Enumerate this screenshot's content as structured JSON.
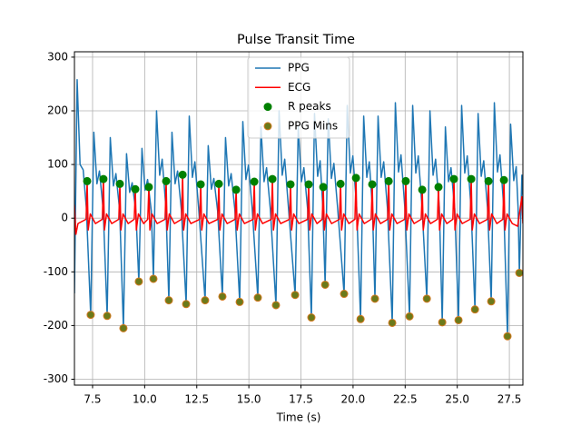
{
  "chart_data": {
    "type": "line",
    "title": "Pulse Transit Time",
    "x_label": "Time (s)",
    "xlim": [
      6.63,
      28.15
    ],
    "ylim": [
      -311,
      310
    ],
    "xticks": [
      7.5,
      {
        "value": 10,
        "label": "10.0"
      },
      12.5,
      {
        "value": 15,
        "label": "15.0"
      },
      17.5,
      {
        "value": 20,
        "label": "20.0"
      },
      22.5,
      {
        "value": 25,
        "label": "25.0"
      },
      27.5
    ],
    "yticks": [
      -300,
      -200,
      -100,
      0,
      100,
      200,
      300
    ],
    "grid": true,
    "legend_position": "upper center",
    "series": [
      {
        "name": "PPG",
        "kind": "line",
        "color": "#1f77b4",
        "x": [
          6.63,
          6.76,
          6.9,
          7.05,
          7.2,
          7.41,
          7.56,
          7.71,
          7.83,
          8.01,
          8.2,
          8.35,
          8.5,
          8.62,
          8.8,
          8.98,
          9.13,
          9.28,
          9.4,
          9.58,
          9.72,
          9.87,
          10.02,
          10.14,
          10.32,
          10.42,
          10.57,
          10.72,
          10.84,
          11.02,
          11.16,
          11.31,
          11.46,
          11.58,
          11.76,
          11.99,
          12.14,
          12.29,
          12.41,
          12.59,
          12.9,
          13.05,
          13.2,
          13.32,
          13.5,
          13.73,
          13.88,
          14.03,
          14.15,
          14.33,
          14.56,
          14.71,
          14.86,
          14.98,
          15.16,
          15.43,
          15.58,
          15.73,
          15.85,
          16.03,
          16.3,
          16.45,
          16.6,
          16.72,
          16.9,
          17.22,
          17.37,
          17.52,
          17.64,
          17.82,
          18.0,
          18.15,
          18.3,
          18.42,
          18.55,
          18.66,
          18.81,
          18.96,
          19.08,
          19.26,
          19.57,
          19.72,
          19.87,
          19.99,
          20.17,
          20.36,
          20.51,
          20.66,
          20.78,
          20.93,
          21.05,
          21.2,
          21.35,
          21.47,
          21.65,
          21.88,
          22.03,
          22.18,
          22.3,
          22.48,
          22.71,
          22.86,
          23.01,
          23.13,
          23.31,
          23.54,
          23.69,
          23.84,
          23.96,
          24.14,
          24.28,
          24.43,
          24.58,
          24.7,
          24.88,
          25.06,
          25.21,
          25.36,
          25.48,
          25.66,
          25.85,
          26.0,
          26.15,
          26.27,
          26.45,
          26.63,
          26.78,
          26.93,
          27.05,
          27.23,
          27.41,
          27.56,
          27.71,
          27.83,
          27.92,
          27.98,
          28.1,
          28.15
        ],
        "values": [
          -140,
          258,
          100,
          90,
          20,
          -180,
          160,
          64,
          88,
          16,
          -182,
          150,
          60,
          83,
          15,
          -205,
          120,
          48,
          66,
          12,
          -118,
          130,
          52,
          72,
          13,
          -113,
          200,
          80,
          110,
          20,
          -153,
          160,
          64,
          88,
          16,
          -160,
          190,
          76,
          105,
          19,
          -153,
          135,
          54,
          74,
          14,
          -146,
          150,
          60,
          83,
          15,
          -156,
          180,
          72,
          99,
          18,
          -148,
          170,
          68,
          94,
          17,
          -162,
          200,
          80,
          110,
          20,
          -143,
          170,
          68,
          94,
          17,
          -185,
          195,
          78,
          107,
          20,
          -124,
          185,
          74,
          102,
          19,
          -141,
          210,
          84,
          116,
          21,
          -188,
          190,
          76,
          105,
          19,
          -150,
          190,
          76,
          105,
          19,
          -195,
          215,
          86,
          118,
          22,
          -183,
          210,
          84,
          116,
          21,
          -150,
          200,
          80,
          110,
          20,
          -194,
          170,
          68,
          94,
          17,
          -190,
          210,
          84,
          116,
          21,
          -170,
          195,
          78,
          107,
          20,
          -155,
          215,
          86,
          118,
          22,
          -220,
          175,
          70,
          96,
          18,
          -102,
          80,
          40
        ]
      },
      {
        "name": "ECG",
        "kind": "line",
        "color": "#ff0000",
        "x": [
          6.63,
          6.7,
          6.8,
          7.19,
          7.24,
          7.29,
          7.39,
          7.64,
          7.97,
          8.02,
          8.07,
          8.17,
          8.42,
          8.76,
          8.81,
          8.86,
          8.96,
          9.21,
          9.5,
          9.55,
          9.6,
          9.7,
          9.95,
          10.15,
          10.2,
          10.25,
          10.35,
          10.6,
          10.98,
          11.03,
          11.08,
          11.18,
          11.43,
          11.77,
          11.82,
          11.87,
          11.97,
          12.22,
          12.64,
          12.69,
          12.74,
          12.84,
          13.09,
          13.51,
          13.56,
          13.61,
          13.71,
          13.96,
          14.34,
          14.39,
          14.44,
          14.54,
          14.79,
          15.21,
          15.26,
          15.31,
          15.41,
          15.66,
          16.08,
          16.13,
          16.18,
          16.28,
          16.53,
          16.95,
          17.0,
          17.05,
          17.15,
          17.4,
          17.82,
          17.87,
          17.92,
          18.02,
          18.27,
          18.52,
          18.57,
          18.62,
          18.72,
          18.97,
          19.35,
          19.4,
          19.45,
          19.55,
          19.8,
          20.09,
          20.14,
          20.19,
          20.29,
          20.54,
          20.87,
          20.92,
          20.97,
          21.07,
          21.32,
          21.66,
          21.71,
          21.76,
          21.86,
          22.11,
          22.48,
          22.53,
          22.58,
          22.68,
          22.93,
          23.27,
          23.32,
          23.37,
          23.47,
          23.72,
          24.05,
          24.1,
          24.15,
          24.25,
          24.5,
          24.79,
          24.84,
          24.89,
          24.99,
          25.24,
          25.62,
          25.67,
          25.72,
          25.82,
          26.07,
          26.45,
          26.5,
          26.55,
          26.65,
          26.9,
          27.19,
          27.24,
          27.29,
          27.39,
          27.64,
          27.9,
          28.1,
          28.15
        ],
        "values": [
          25,
          -30,
          -10,
          -2,
          69,
          -22,
          8,
          -10,
          -2,
          73,
          -22,
          8,
          -10,
          -2,
          64,
          -22,
          8,
          -10,
          -2,
          54,
          -22,
          8,
          -10,
          -2,
          58,
          -22,
          8,
          -10,
          -2,
          69,
          -22,
          8,
          -10,
          -2,
          81,
          -22,
          8,
          -10,
          -2,
          63,
          -22,
          8,
          -10,
          -2,
          64,
          -22,
          8,
          -10,
          -2,
          53,
          -22,
          8,
          -10,
          -2,
          68,
          -22,
          8,
          -10,
          -2,
          73,
          -22,
          8,
          -10,
          -2,
          63,
          -22,
          8,
          -10,
          -2,
          63,
          -22,
          8,
          -10,
          -2,
          58,
          -22,
          8,
          -10,
          -2,
          64,
          -22,
          8,
          -10,
          -2,
          75,
          -22,
          8,
          -10,
          -2,
          63,
          -22,
          8,
          -10,
          -2,
          69,
          -22,
          8,
          -10,
          -2,
          69,
          -22,
          8,
          -10,
          -2,
          53,
          -22,
          8,
          -10,
          -2,
          58,
          -22,
          8,
          -10,
          -2,
          73,
          -22,
          8,
          -10,
          -2,
          73,
          -22,
          8,
          -10,
          -2,
          69,
          -22,
          8,
          -10,
          -2,
          71,
          -22,
          8,
          -10,
          -15,
          40,
          -10
        ]
      },
      {
        "name": "R peaks",
        "kind": "scatter",
        "color": "#008000",
        "edge_color": "#008000",
        "x": [
          7.24,
          8.02,
          8.81,
          9.55,
          10.2,
          11.03,
          11.82,
          12.69,
          13.56,
          14.39,
          15.26,
          16.13,
          17.0,
          17.87,
          18.57,
          19.4,
          20.14,
          20.92,
          21.71,
          22.53,
          23.32,
          24.1,
          24.84,
          25.67,
          26.5,
          27.24
        ],
        "values": [
          69,
          73,
          64,
          54,
          58,
          69,
          81,
          63,
          64,
          53,
          68,
          73,
          63,
          63,
          58,
          64,
          75,
          63,
          69,
          69,
          53,
          58,
          73,
          73,
          69,
          71
        ]
      },
      {
        "name": "PPG Mins",
        "kind": "scatter",
        "color": "#6b7a1a",
        "edge_color": "#d2781e",
        "x": [
          7.41,
          8.2,
          8.98,
          9.72,
          10.42,
          11.16,
          11.99,
          12.9,
          13.73,
          14.56,
          15.43,
          16.3,
          17.22,
          18.0,
          18.66,
          19.57,
          20.36,
          21.05,
          21.88,
          22.71,
          23.54,
          24.28,
          25.06,
          25.85,
          26.63,
          27.41,
          27.98
        ],
        "values": [
          -180,
          -182,
          -205,
          -118,
          -113,
          -153,
          -160,
          -153,
          -146,
          -156,
          -148,
          -162,
          -143,
          -185,
          -124,
          -141,
          -188,
          -150,
          -195,
          -183,
          -150,
          -194,
          -190,
          -170,
          -155,
          -220,
          -102
        ]
      }
    ]
  }
}
